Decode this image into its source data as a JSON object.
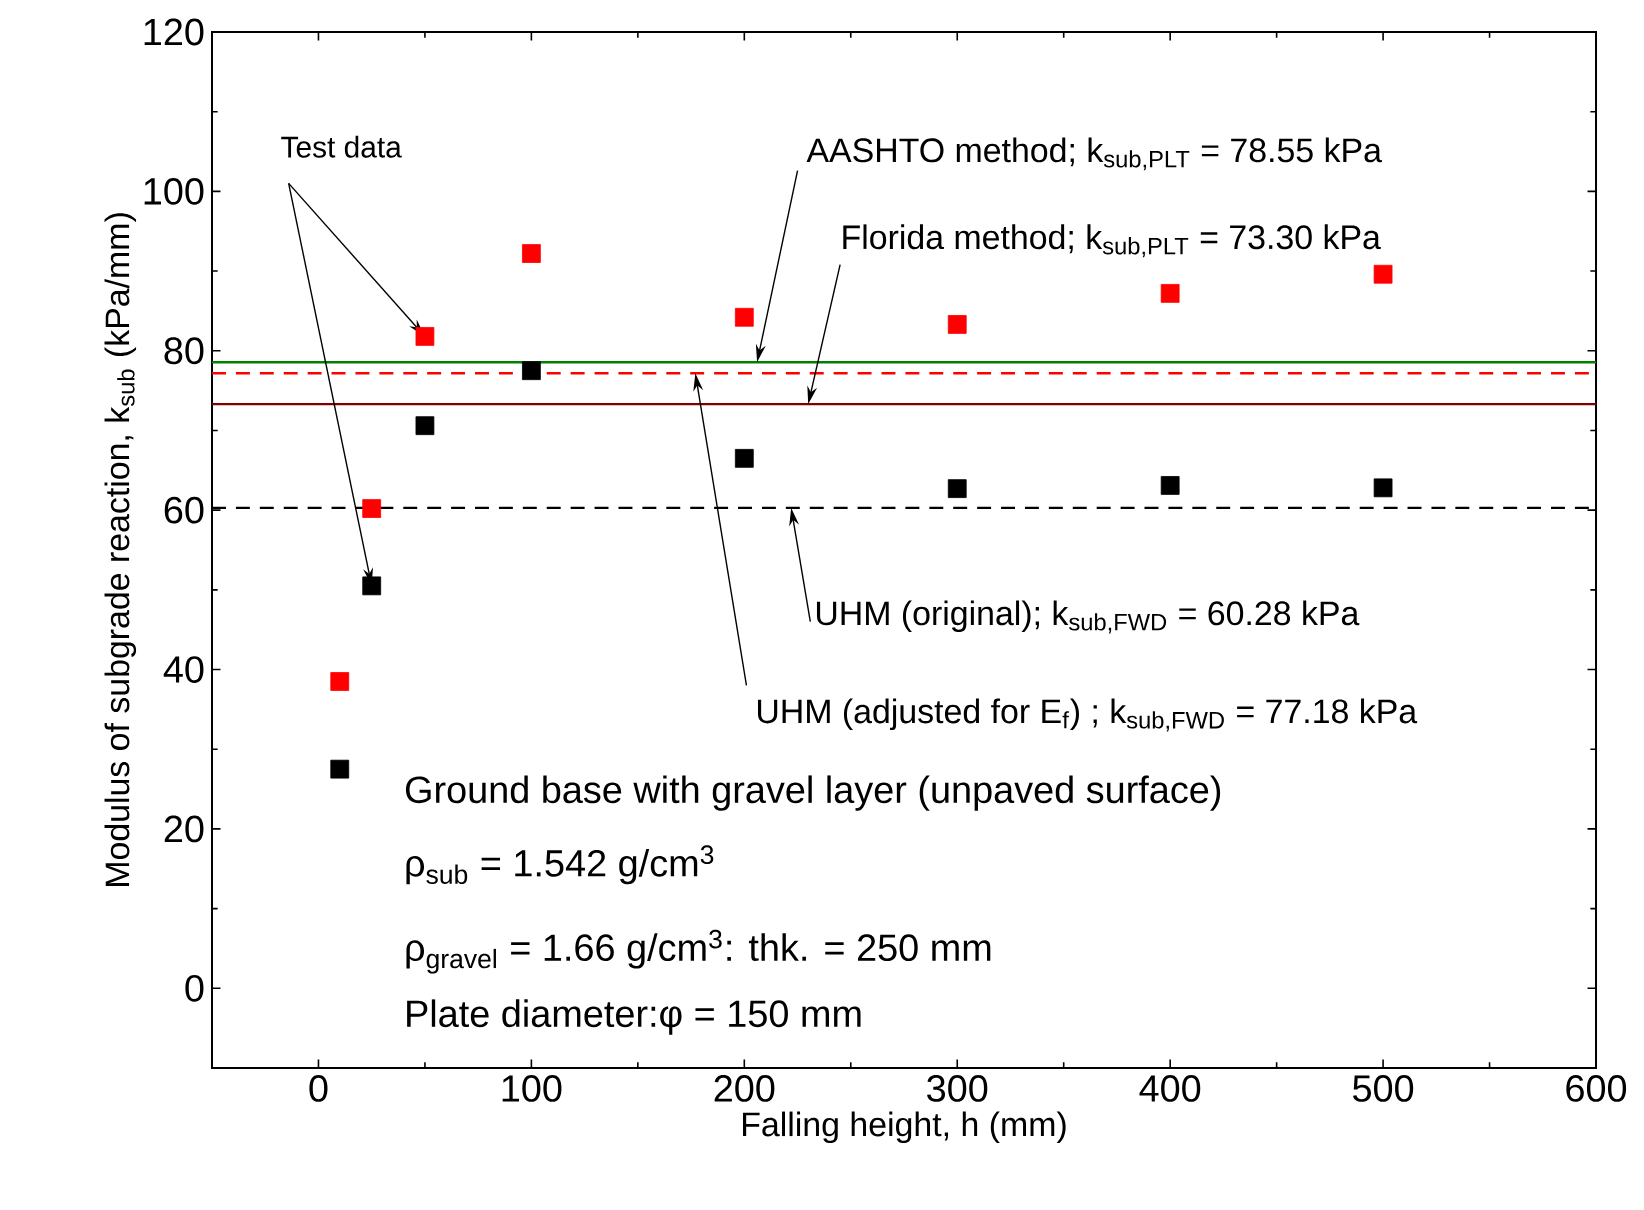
{
  "chart_data": {
    "type": "scatter",
    "xlabel": "Falling height, h (mm)",
    "ylabel": "Modulus of subgrade reaction, k$_{sub}$ (kPa/mm)",
    "xlim": [
      -50,
      600
    ],
    "ylim": [
      -10,
      120
    ],
    "xticks": [
      0,
      100,
      200,
      300,
      400,
      500,
      600
    ],
    "yticks": [
      0,
      20,
      40,
      60,
      80,
      100,
      120
    ],
    "grid": false,
    "marker": "square",
    "series": [
      {
        "color": "#ff0000",
        "x": [
          10,
          25,
          50,
          100,
          200,
          300,
          400,
          500
        ],
        "values": [
          38.5,
          60.2,
          81.8,
          92.2,
          84.2,
          83.3,
          87.2,
          89.6
        ]
      },
      {
        "color": "#000000",
        "x": [
          10,
          25,
          50,
          100,
          200,
          300,
          400,
          500
        ],
        "values": [
          27.5,
          50.5,
          70.6,
          77.5,
          66.5,
          62.7,
          63.1,
          62.8
        ]
      }
    ],
    "ref_lines": [
      {
        "axis": "y",
        "value": 78.55,
        "color": "#008000",
        "line_style": "solid"
      },
      {
        "axis": "y",
        "value": 77.18,
        "color": "#ff0000",
        "line_style": "dashed"
      },
      {
        "axis": "y",
        "value": 73.3,
        "color": "#800000",
        "line_style": "solid"
      },
      {
        "axis": "y",
        "value": 60.28,
        "color": "#000000",
        "line_style": "dashed"
      }
    ],
    "annotations": [
      {
        "text": "Test data",
        "x": 50,
        "y": 81.8
      },
      {
        "text": "AASHTO method; k$_{sub,PLT}$ = 78.55 kPa",
        "x": 206,
        "y": 78.55
      },
      {
        "text": "Florida method; k$_{sub,PLT}$ = 73.30 kPa",
        "x": 230,
        "y": 73.3
      },
      {
        "text": "UHM (original); k$_{sub,FWD}$ = 60.28 kPa",
        "x": 222,
        "y": 60.28
      },
      {
        "text": "UHM (adjusted for E$_{f}$) ; k$_{sub,FWD}$ = 77.18 kPa",
        "x": 177,
        "y": 77.18
      },
      "Ground base with gravel layer (unpaved surface)",
      "ρ$_{sub}$   = 1.542 g/cm$^{3}$",
      "ρ$_{gravel}$ = 1.66 g/cm$^{3}$: thk. = 250 mm",
      "Plate diameter:φ = 150 mm"
    ]
  }
}
